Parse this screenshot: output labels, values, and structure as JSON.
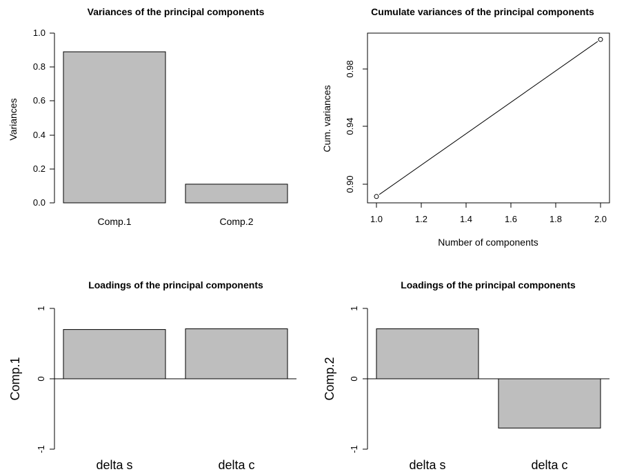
{
  "chart_data": [
    {
      "type": "bar",
      "title": "Variances of the principal components",
      "xlabel": "",
      "ylabel": "Variances",
      "categories": [
        "Comp.1",
        "Comp.2"
      ],
      "values": [
        0.89,
        0.11
      ],
      "ylim": [
        0,
        1
      ],
      "yticks": [
        0.0,
        0.2,
        0.4,
        0.6,
        0.8,
        1.0
      ],
      "ytick_labels": [
        "0.0",
        "0.2",
        "0.4",
        "0.6",
        "0.8",
        "1.0"
      ],
      "grid": false,
      "bar_color": "#bebebe"
    },
    {
      "type": "line",
      "title": "Cumulate variances of the principal components",
      "xlabel": "Number of components",
      "ylabel": "Cum. variances",
      "x": [
        1,
        2
      ],
      "y": [
        0.891,
        1.0
      ],
      "xlim": [
        0.96,
        2.04
      ],
      "ylim": [
        0.8866,
        1.0044
      ],
      "xticks": [
        1.0,
        1.2,
        1.4,
        1.6,
        1.8,
        2.0
      ],
      "xtick_labels": [
        "1.0",
        "1.2",
        "1.4",
        "1.6",
        "1.8",
        "2.0"
      ],
      "yticks": [
        0.9,
        0.94,
        0.98
      ],
      "ytick_labels": [
        "0.90",
        "0.94",
        "0.98"
      ],
      "markers": "open-circle",
      "grid": false
    },
    {
      "type": "bar",
      "title": "Loadings of the principal components",
      "xlabel": "",
      "ylabel": "Comp.1",
      "categories": [
        "delta s",
        "delta c"
      ],
      "values": [
        0.7,
        0.71
      ],
      "ylim": [
        -1,
        1
      ],
      "yticks": [
        -1,
        0,
        1
      ],
      "ytick_labels": [
        "-1",
        "0",
        "1"
      ],
      "grid": false,
      "bar_color": "#bebebe"
    },
    {
      "type": "bar",
      "title": "Loadings of the principal components",
      "xlabel": "",
      "ylabel": "Comp.2",
      "categories": [
        "delta s",
        "delta c"
      ],
      "values": [
        0.71,
        -0.7
      ],
      "ylim": [
        -1,
        1
      ],
      "yticks": [
        -1,
        0,
        1
      ],
      "ytick_labels": [
        "-1",
        "0",
        "1"
      ],
      "grid": false,
      "bar_color": "#bebebe"
    }
  ]
}
